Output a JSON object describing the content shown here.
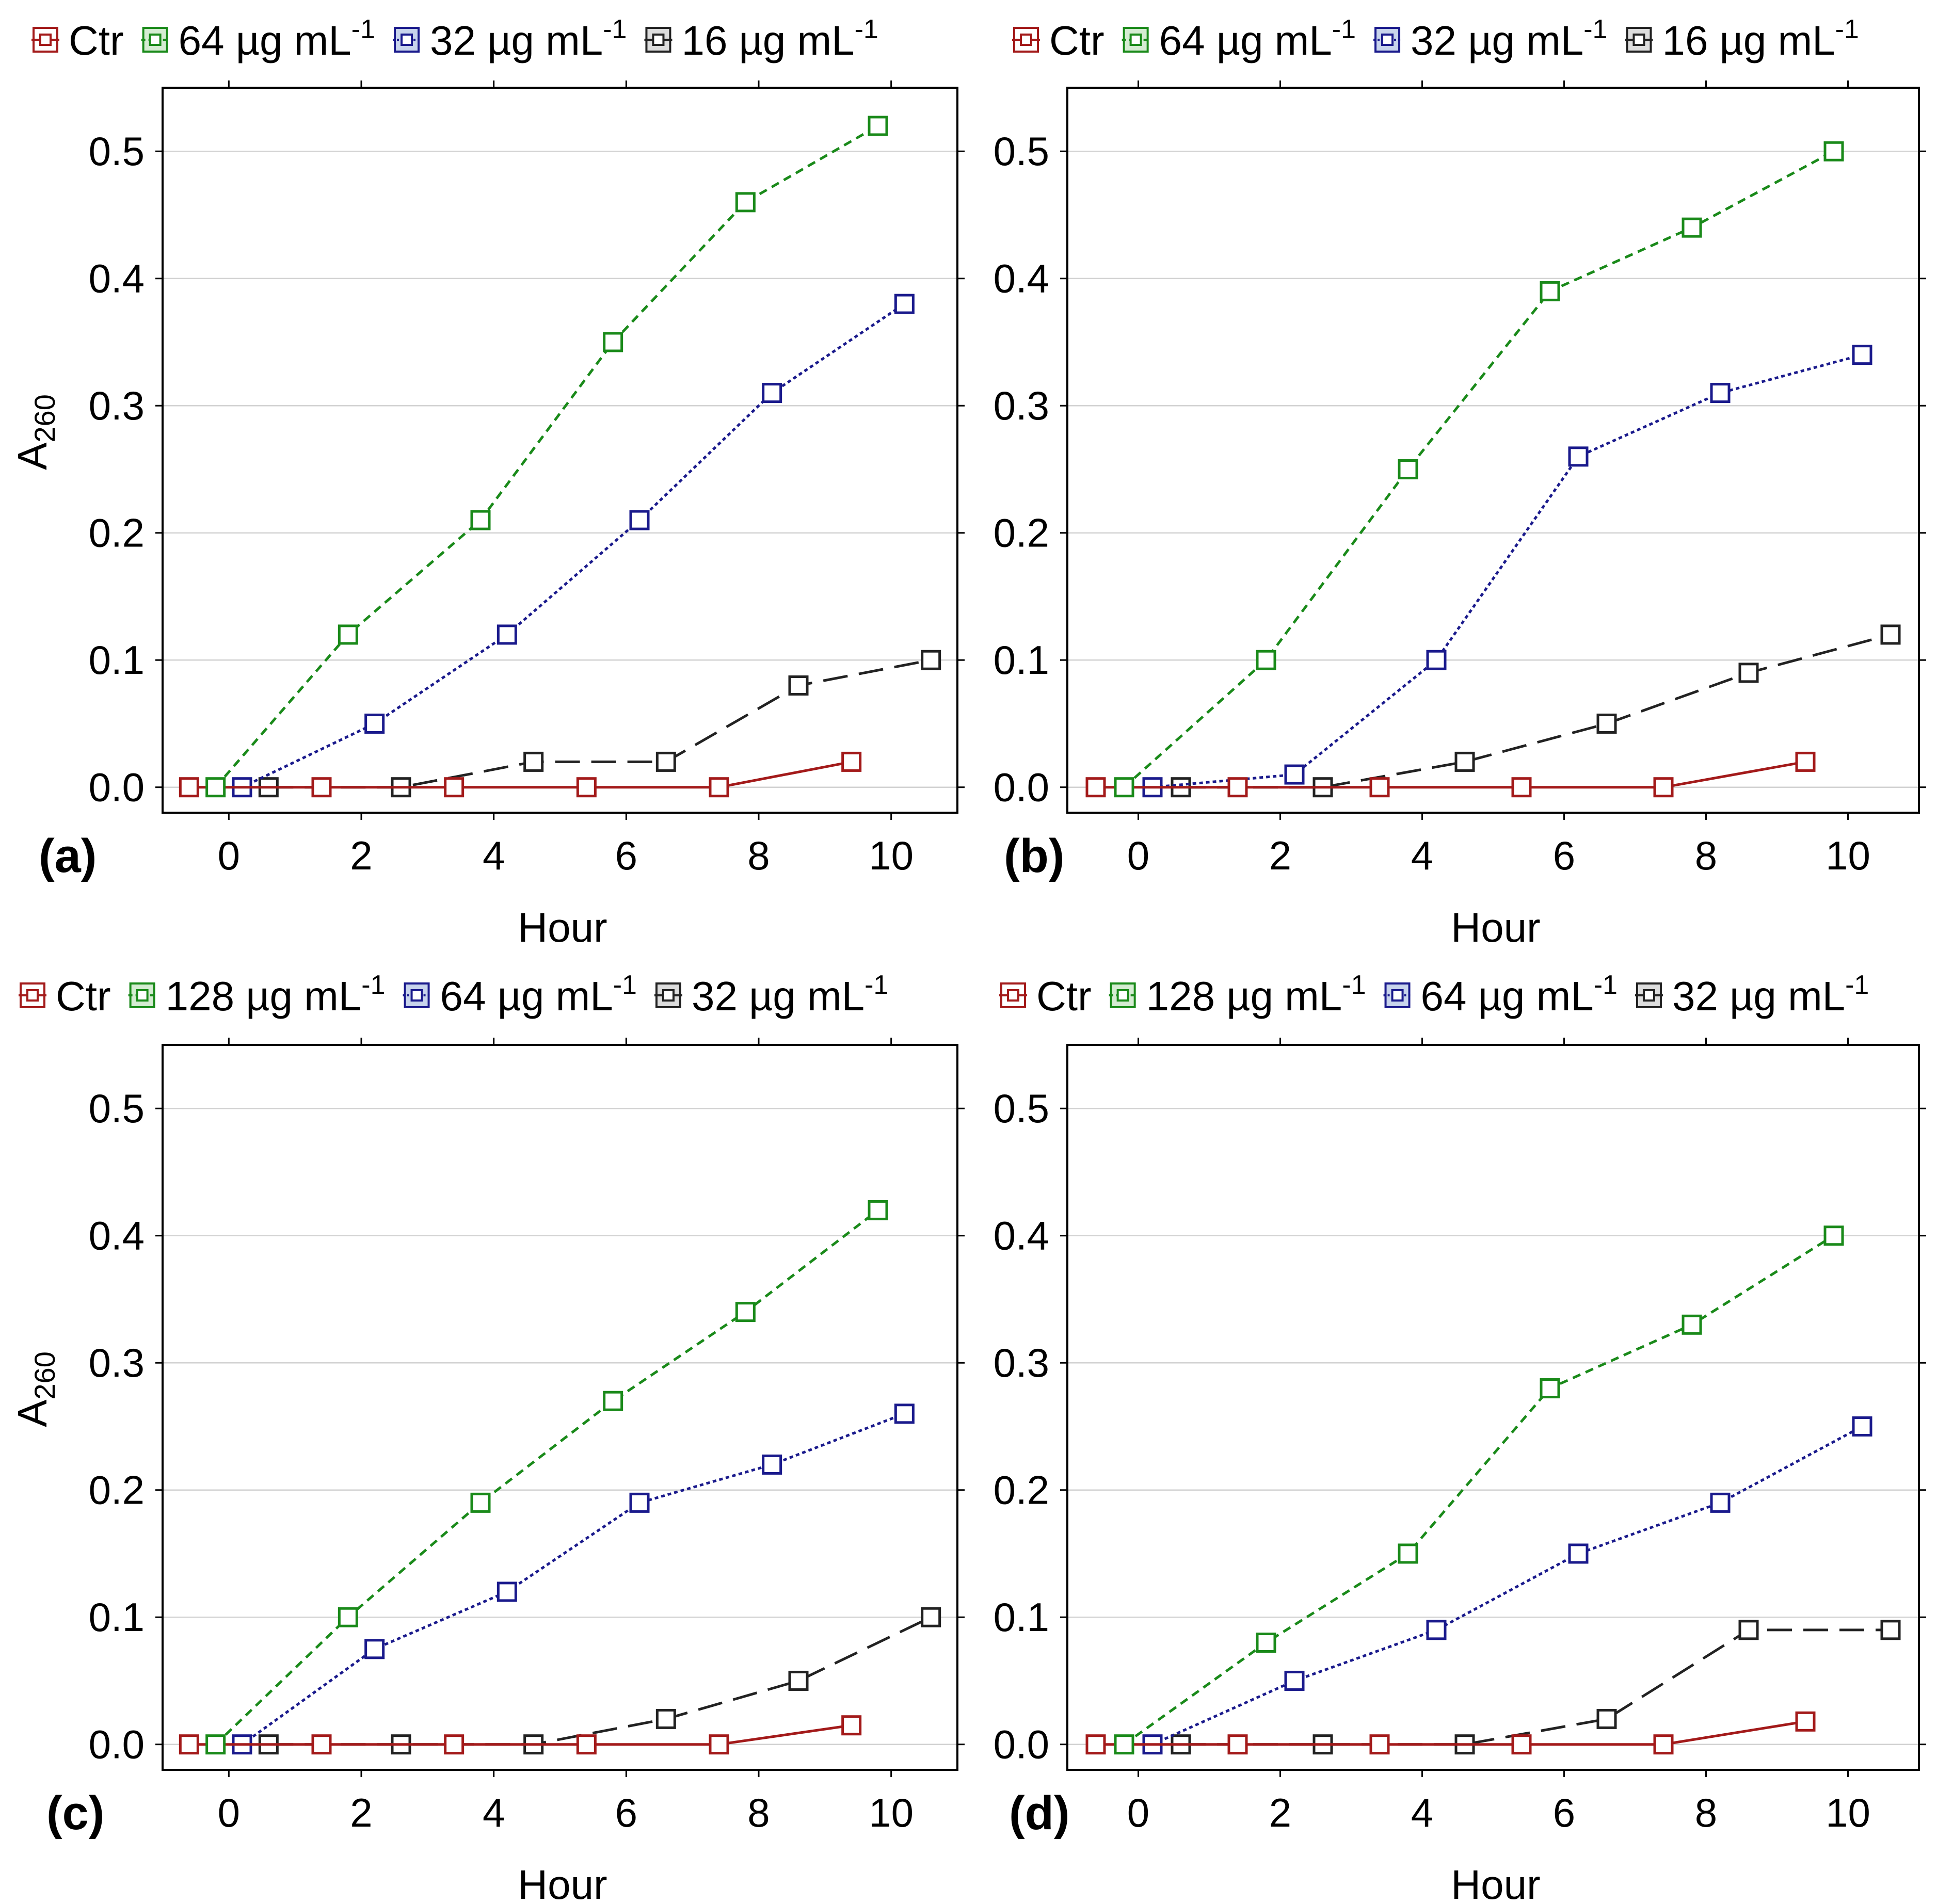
{
  "colors": {
    "ctr": "#a31a1a",
    "high": "#1a8a1a",
    "mid": "#1a1a8c",
    "low": "#222222",
    "grid": "#d2d2d2",
    "axis": "#000000"
  },
  "chart_data": [
    {
      "type": "line",
      "panel_label": "(a)",
      "xlabel": "Hour",
      "ylabel": "A",
      "ylabel_sub": "260",
      "xlim": [
        -1,
        11
      ],
      "ylim": [
        -0.02,
        0.55
      ],
      "xticks": [
        "0",
        "2",
        "4",
        "6",
        "8",
        "10"
      ],
      "yticks": [
        "0.0",
        "0.1",
        "0.2",
        "0.3",
        "0.4",
        "0.5"
      ],
      "grid": true,
      "legend_position": "top",
      "series": [
        {
          "name": "Ctr",
          "label_main": "Ctr",
          "label_sup": "",
          "x": [
            -0.6,
            1.4,
            3.4,
            5.4,
            7.4,
            9.4
          ],
          "values": [
            0,
            0,
            0,
            0,
            0,
            0.02
          ]
        },
        {
          "name": "64 µg mL-1",
          "label_main": "64 µg mL",
          "label_sup": "-1",
          "x": [
            -0.2,
            1.8,
            3.8,
            5.8,
            7.8,
            9.8
          ],
          "values": [
            0,
            0.12,
            0.21,
            0.35,
            0.46,
            0.52
          ]
        },
        {
          "name": "32 µg mL-1",
          "label_main": "32 µg mL",
          "label_sup": "-1",
          "x": [
            0.2,
            2.2,
            4.2,
            6.2,
            8.2,
            10.2
          ],
          "values": [
            0,
            0.05,
            0.12,
            0.21,
            0.31,
            0.38
          ]
        },
        {
          "name": "16 µg mL-1",
          "label_main": "16 µg mL",
          "label_sup": "-1",
          "x": [
            0.6,
            2.6,
            4.6,
            6.6,
            8.6,
            10.6
          ],
          "values": [
            0,
            0,
            0.02,
            0.02,
            0.08,
            0.1
          ]
        }
      ]
    },
    {
      "type": "line",
      "panel_label": "(b)",
      "xlabel": "Hour",
      "ylabel": "",
      "ylabel_sub": "",
      "xlim": [
        -1,
        11
      ],
      "ylim": [
        -0.02,
        0.55
      ],
      "xticks": [
        "0",
        "2",
        "4",
        "6",
        "8",
        "10"
      ],
      "yticks": [
        "0.0",
        "0.1",
        "0.2",
        "0.3",
        "0.4",
        "0.5"
      ],
      "grid": true,
      "legend_position": "top",
      "series": [
        {
          "name": "Ctr",
          "label_main": "Ctr",
          "label_sup": "",
          "x": [
            -0.6,
            1.4,
            3.4,
            5.4,
            7.4,
            9.4
          ],
          "values": [
            0,
            0,
            0,
            0,
            0,
            0.02
          ]
        },
        {
          "name": "64 µg mL-1",
          "label_main": "64 µg mL",
          "label_sup": "-1",
          "x": [
            -0.2,
            1.8,
            3.8,
            5.8,
            7.8,
            9.8
          ],
          "values": [
            0,
            0.1,
            0.25,
            0.39,
            0.44,
            0.5
          ]
        },
        {
          "name": "32 µg mL-1",
          "label_main": "32 µg mL",
          "label_sup": "-1",
          "x": [
            0.2,
            2.2,
            4.2,
            6.2,
            8.2,
            10.2
          ],
          "values": [
            0,
            0.01,
            0.1,
            0.26,
            0.31,
            0.34
          ]
        },
        {
          "name": "16 µg mL-1",
          "label_main": "16 µg mL",
          "label_sup": "-1",
          "x": [
            0.6,
            2.6,
            4.6,
            6.6,
            8.6,
            10.6
          ],
          "values": [
            0,
            0,
            0.02,
            0.05,
            0.09,
            0.12
          ]
        }
      ]
    },
    {
      "type": "line",
      "panel_label": "(c)",
      "xlabel": "Hour",
      "ylabel": "A",
      "ylabel_sub": "260",
      "xlim": [
        -1,
        11
      ],
      "ylim": [
        -0.02,
        0.55
      ],
      "xticks": [
        "0",
        "2",
        "4",
        "6",
        "8",
        "10"
      ],
      "yticks": [
        "0.0",
        "0.1",
        "0.2",
        "0.3",
        "0.4",
        "0.5"
      ],
      "grid": true,
      "legend_position": "top",
      "series": [
        {
          "name": "Ctr",
          "label_main": "Ctr",
          "label_sup": "",
          "x": [
            -0.6,
            1.4,
            3.4,
            5.4,
            7.4,
            9.4
          ],
          "values": [
            0,
            0,
            0,
            0,
            0,
            0.015
          ]
        },
        {
          "name": "128 µg mL-1",
          "label_main": "128 µg mL",
          "label_sup": "-1",
          "x": [
            -0.2,
            1.8,
            3.8,
            5.8,
            7.8,
            9.8
          ],
          "values": [
            0,
            0.1,
            0.19,
            0.27,
            0.34,
            0.42
          ]
        },
        {
          "name": "64 µg mL-1",
          "label_main": "64 µg mL",
          "label_sup": "-1",
          "x": [
            0.2,
            2.2,
            4.2,
            6.2,
            8.2,
            10.2
          ],
          "values": [
            0,
            0.075,
            0.12,
            0.19,
            0.22,
            0.26
          ]
        },
        {
          "name": "32 µg mL-1",
          "label_main": "32 µg mL",
          "label_sup": "-1",
          "x": [
            0.6,
            2.6,
            4.6,
            6.6,
            8.6,
            10.6
          ],
          "values": [
            0,
            0,
            0,
            0.02,
            0.05,
            0.1
          ]
        }
      ]
    },
    {
      "type": "line",
      "panel_label": "(d)",
      "xlabel": "Hour",
      "ylabel": "",
      "ylabel_sub": "",
      "xlim": [
        -1,
        11
      ],
      "ylim": [
        -0.02,
        0.55
      ],
      "xticks": [
        "0",
        "2",
        "4",
        "6",
        "8",
        "10"
      ],
      "yticks": [
        "0.0",
        "0.1",
        "0.2",
        "0.3",
        "0.4",
        "0.5"
      ],
      "grid": true,
      "legend_position": "top",
      "series": [
        {
          "name": "Ctr",
          "label_main": "Ctr",
          "label_sup": "",
          "x": [
            -0.6,
            1.4,
            3.4,
            5.4,
            7.4,
            9.4
          ],
          "values": [
            0,
            0,
            0,
            0,
            0,
            0.018
          ]
        },
        {
          "name": "128 µg mL-1",
          "label_main": "128 µg mL",
          "label_sup": "-1",
          "x": [
            -0.2,
            1.8,
            3.8,
            5.8,
            7.8,
            9.8
          ],
          "values": [
            0,
            0.08,
            0.15,
            0.28,
            0.33,
            0.4
          ]
        },
        {
          "name": "64 µg mL-1",
          "label_main": "64 µg mL",
          "label_sup": "-1",
          "x": [
            0.2,
            2.2,
            4.2,
            6.2,
            8.2,
            10.2
          ],
          "values": [
            0,
            0.05,
            0.09,
            0.15,
            0.19,
            0.25
          ]
        },
        {
          "name": "32 µg mL-1",
          "label_main": "32 µg mL",
          "label_sup": "-1",
          "x": [
            0.6,
            2.6,
            4.6,
            6.6,
            8.6,
            10.6
          ],
          "values": [
            0,
            0,
            0,
            0.02,
            0.09,
            0.09
          ]
        }
      ]
    }
  ]
}
